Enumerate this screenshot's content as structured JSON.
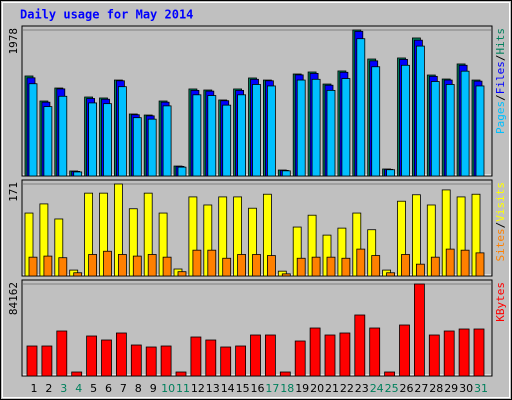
{
  "title": "Daily usage for May 2014",
  "legend_separator": "/",
  "chart_data": [
    {
      "type": "bar",
      "ylim": [
        0,
        1978
      ],
      "yticks": [
        1978
      ],
      "series": [
        {
          "name": "Pages",
          "color": "#00c0ff",
          "values": [
            1250,
            940,
            1080,
            55,
            990,
            980,
            1210,
            790,
            770,
            950,
            120,
            1100,
            1090,
            960,
            1100,
            1240,
            1220,
            70,
            1300,
            1310,
            1160,
            1320,
            1860,
            1480,
            85,
            1500,
            1760,
            1280,
            1240,
            1420,
            1220
          ]
        },
        {
          "name": "Files",
          "color": "#0000ff",
          "values": [
            1330,
            1000,
            1180,
            62,
            1050,
            1040,
            1290,
            830,
            815,
            1000,
            130,
            1160,
            1150,
            1020,
            1160,
            1310,
            1290,
            76,
            1370,
            1390,
            1230,
            1405,
            1960,
            1560,
            90,
            1580,
            1840,
            1350,
            1300,
            1500,
            1285
          ]
        },
        {
          "name": "Hits",
          "color": "#00805c",
          "values": [
            1355,
            1016,
            1192,
            68,
            1070,
            1057,
            1300,
            840,
            826,
            1016,
            135,
            1179,
            1165,
            1030,
            1179,
            1328,
            1300,
            81,
            1382,
            1409,
            1246,
            1423,
            1978,
            1585,
            95,
            1599,
            1870,
            1368,
            1314,
            1518,
            1300
          ]
        }
      ]
    },
    {
      "type": "bar",
      "ylim": [
        0,
        171
      ],
      "yticks": [
        171
      ],
      "series": [
        {
          "name": "Sites",
          "color": "#ff8000",
          "values": [
            35,
            37,
            34,
            6,
            40,
            46,
            40,
            37,
            40,
            35,
            8,
            48,
            48,
            33,
            40,
            40,
            38,
            4,
            33,
            35,
            35,
            33,
            50,
            38,
            6,
            40,
            22,
            35,
            50,
            48,
            43
          ]
        },
        {
          "name": "Visits",
          "color": "#ffff00",
          "values": [
            117,
            134,
            106,
            11,
            154,
            154,
            171,
            125,
            154,
            117,
            13,
            147,
            132,
            147,
            147,
            126,
            152,
            9,
            91,
            113,
            76,
            89,
            117,
            86,
            11,
            139,
            151,
            132,
            160,
            147,
            152
          ]
        }
      ]
    },
    {
      "type": "bar",
      "ylim": [
        0,
        84162
      ],
      "yticks": [
        84162
      ],
      "categories": [
        "1",
        "2",
        "3",
        "4",
        "5",
        "6",
        "7",
        "8",
        "9",
        "10",
        "11",
        "12",
        "13",
        "14",
        "15",
        "16",
        "17",
        "18",
        "19",
        "20",
        "21",
        "22",
        "23",
        "24",
        "25",
        "26",
        "27",
        "28",
        "29",
        "30",
        "31"
      ],
      "category_colors": [
        "#000000",
        "#000000",
        "#00805c",
        "#00805c",
        "#000000",
        "#000000",
        "#000000",
        "#000000",
        "#000000",
        "#00805c",
        "#00805c",
        "#000000",
        "#000000",
        "#000000",
        "#000000",
        "#000000",
        "#00805c",
        "#00805c",
        "#000000",
        "#000000",
        "#000000",
        "#000000",
        "#000000",
        "#00805c",
        "#00805c",
        "#000000",
        "#000000",
        "#000000",
        "#000000",
        "#000000",
        "#00805c"
      ],
      "series": [
        {
          "name": "KBytes",
          "color": "#ff0000",
          "values": [
            27444,
            27444,
            41166,
            3659,
            36592,
            32932,
            39337,
            28358,
            26529,
            27444,
            3659,
            35677,
            32932,
            26529,
            27444,
            37507,
            37507,
            3659,
            32018,
            43910,
            37507,
            39337,
            55803,
            43910,
            3659,
            46654,
            84162,
            37507,
            41166,
            42995,
            42995
          ]
        }
      ]
    }
  ]
}
